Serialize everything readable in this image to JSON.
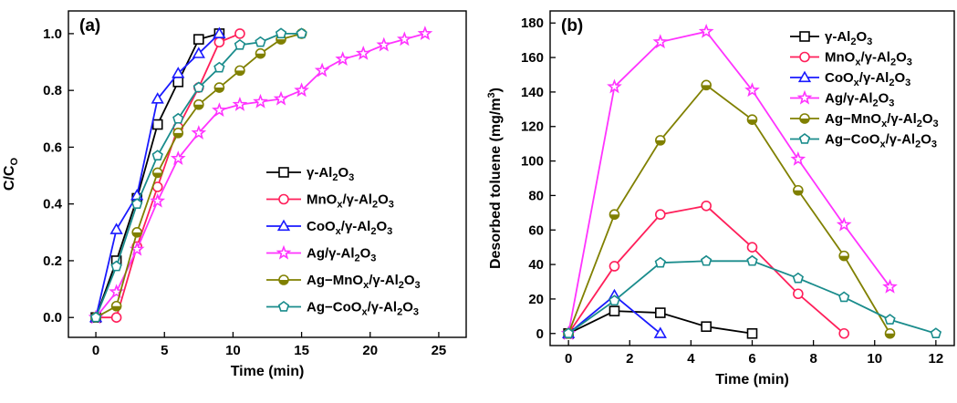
{
  "chart_data": [
    {
      "type": "line",
      "panel_label": "(a)",
      "xlabel": "Time (min)",
      "ylabel": "C/C",
      "ylabel_sub": "O",
      "xlim": [
        -2,
        27
      ],
      "ylim": [
        -0.07,
        1.08
      ],
      "xticks": [
        0,
        5,
        10,
        15,
        20,
        25
      ],
      "yticks": [
        0.0,
        0.2,
        0.4,
        0.6,
        0.8,
        1.0
      ],
      "ytick_labels": [
        "0.0",
        "0.2",
        "0.4",
        "0.6",
        "0.8",
        "1.0"
      ],
      "legend_position": "lower-right",
      "series": [
        {
          "name": "γ-Al2O3",
          "color": "#000000",
          "marker": "square",
          "x": [
            0,
            1.5,
            3,
            4.5,
            6,
            7.5,
            9
          ],
          "y": [
            0,
            0.2,
            0.42,
            0.68,
            0.83,
            0.98,
            1.0
          ]
        },
        {
          "name": "MnOx/γ-Al2O3",
          "color": "#ff1f5a",
          "marker": "circle",
          "x": [
            0,
            1.5,
            3,
            4.5,
            6,
            7.5,
            9,
            10.5
          ],
          "y": [
            0,
            0,
            0.25,
            0.46,
            0.67,
            0.81,
            0.97,
            1.0
          ]
        },
        {
          "name": "CoOx/γ-Al2O3",
          "color": "#1a1aff",
          "marker": "triangle",
          "x": [
            0,
            1.5,
            3,
            4.5,
            6,
            7.5,
            9
          ],
          "y": [
            0,
            0.31,
            0.43,
            0.77,
            0.86,
            0.93,
            1.0
          ]
        },
        {
          "name": "Ag/γ-Al2O3",
          "color": "#ff33ff",
          "marker": "star",
          "x": [
            0,
            1.5,
            3,
            4.5,
            6,
            7.5,
            9,
            10.5,
            12,
            13.5,
            15,
            16.5,
            18,
            19.5,
            21,
            22.5,
            24
          ],
          "y": [
            0,
            0.09,
            0.24,
            0.41,
            0.56,
            0.65,
            0.73,
            0.75,
            0.76,
            0.77,
            0.8,
            0.87,
            0.91,
            0.93,
            0.96,
            0.98,
            1.0
          ]
        },
        {
          "name": "Ag−MnOx/γ-Al2O3",
          "color": "#808000",
          "marker": "circle-half",
          "x": [
            0,
            1.5,
            3,
            4.5,
            6,
            7.5,
            9,
            10.5,
            12,
            13.5,
            15
          ],
          "y": [
            0,
            0.04,
            0.3,
            0.51,
            0.65,
            0.75,
            0.81,
            0.87,
            0.93,
            0.98,
            1.0
          ]
        },
        {
          "name": "Ag−CoOx/γ-Al2O3",
          "color": "#1a8c8c",
          "marker": "pentagon",
          "x": [
            0,
            1.5,
            3,
            4.5,
            6,
            7.5,
            9,
            10.5,
            12,
            13.5,
            15
          ],
          "y": [
            0,
            0.18,
            0.4,
            0.57,
            0.7,
            0.81,
            0.88,
            0.96,
            0.97,
            1.0,
            1.0
          ]
        }
      ]
    },
    {
      "type": "line",
      "panel_label": "(b)",
      "xlabel": "Time (min)",
      "ylabel": "Desorbed toluene (mg/m",
      "ylabel_sup": "3",
      "ylabel_end": ")",
      "xlim": [
        -0.6,
        12.6
      ],
      "ylim": [
        -7,
        187
      ],
      "xticks": [
        0,
        2,
        4,
        6,
        8,
        10,
        12
      ],
      "yticks": [
        0,
        20,
        40,
        60,
        80,
        100,
        120,
        140,
        160,
        180
      ],
      "legend_position": "top-right",
      "series": [
        {
          "name": "γ-Al2O3",
          "color": "#000000",
          "marker": "square",
          "x": [
            0,
            1.5,
            3,
            4.5,
            6
          ],
          "y": [
            0,
            13,
            12,
            4,
            0
          ]
        },
        {
          "name": "MnOx/γ-Al2O3",
          "color": "#ff1f5a",
          "marker": "circle",
          "x": [
            0,
            1.5,
            3,
            4.5,
            6,
            7.5,
            9
          ],
          "y": [
            0,
            39,
            69,
            74,
            50,
            23,
            0
          ]
        },
        {
          "name": "CoOx/γ-Al2O3",
          "color": "#1a1aff",
          "marker": "triangle",
          "x": [
            0,
            1.5,
            3
          ],
          "y": [
            0,
            22,
            0
          ]
        },
        {
          "name": "Ag/γ-Al2O3",
          "color": "#ff33ff",
          "marker": "star",
          "x": [
            0,
            1.5,
            3,
            4.5,
            6,
            7.5,
            9,
            10.5
          ],
          "y": [
            0,
            143,
            169,
            175,
            141,
            101,
            63,
            27
          ]
        },
        {
          "name": "Ag−MnOx/γ-Al2O3",
          "color": "#808000",
          "marker": "circle-half",
          "x": [
            0,
            1.5,
            3,
            4.5,
            6,
            7.5,
            9,
            10.5
          ],
          "y": [
            0,
            69,
            112,
            144,
            124,
            83,
            45,
            0
          ]
        },
        {
          "name": "Ag−CoOx/γ-Al2O3",
          "color": "#1a8c8c",
          "marker": "pentagon",
          "x": [
            0,
            1.5,
            3,
            4.5,
            6,
            7.5,
            9,
            10.5,
            12
          ],
          "y": [
            0,
            19,
            41,
            42,
            42,
            32,
            21,
            8,
            0
          ]
        }
      ]
    }
  ]
}
